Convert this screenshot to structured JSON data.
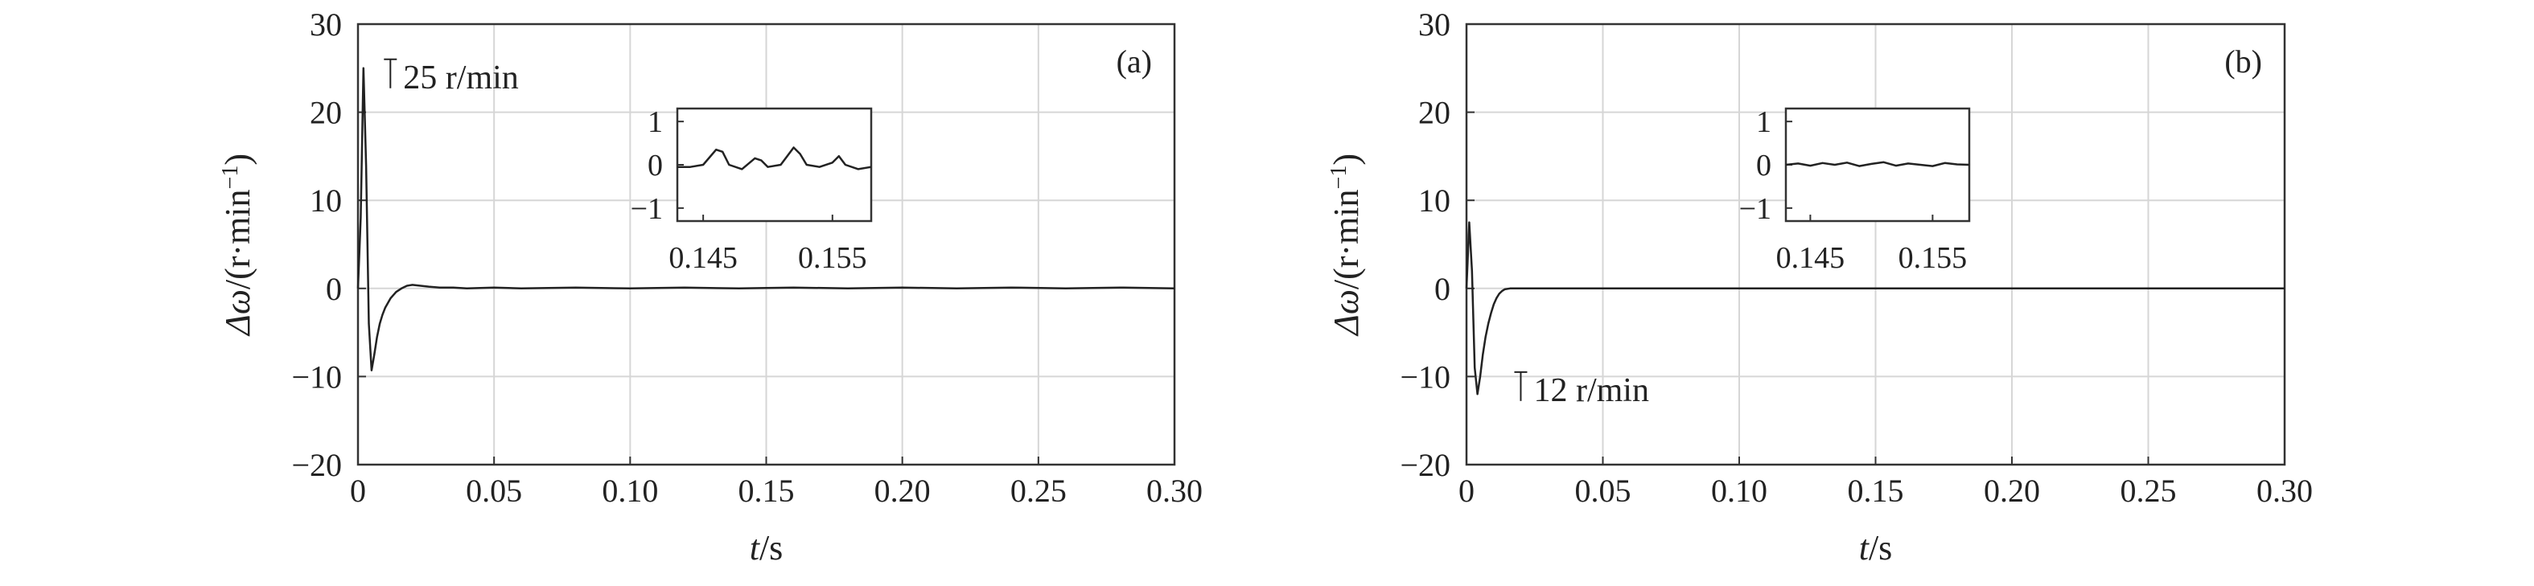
{
  "chart_data": [
    {
      "type": "line",
      "panel_label": "(a)",
      "xlabel_var": "t",
      "xlabel_unit": "/s",
      "ylabel_var": "Δω",
      "ylabel_unit": "/(r·min",
      "ylabel_exp": "−1",
      "ylabel_close": ")",
      "xlim": [
        0,
        0.3
      ],
      "ylim": [
        -20,
        30
      ],
      "xticks": [
        0,
        0.05,
        0.1,
        0.15,
        0.2,
        0.25,
        0.3
      ],
      "xtick_labels": [
        "0",
        "0.05",
        "0.10",
        "0.15",
        "0.20",
        "0.25",
        "0.30"
      ],
      "yticks": [
        -20,
        -10,
        0,
        10,
        20,
        30
      ],
      "ytick_labels": [
        "−20",
        "−10",
        "0",
        "10",
        "20",
        "30"
      ],
      "grid": true,
      "annotation": {
        "text": "25 r/min",
        "x": 0.006,
        "y": 24
      },
      "series": [
        {
          "x": [
            0,
            0.001,
            0.002,
            0.003,
            0.004,
            0.005,
            0.006,
            0.007,
            0.008,
            0.009,
            0.01,
            0.012,
            0.014,
            0.016,
            0.018,
            0.02,
            0.023,
            0.026,
            0.03,
            0.035,
            0.04,
            0.05,
            0.06,
            0.08,
            0.1,
            0.12,
            0.14,
            0.16,
            0.18,
            0.2,
            0.22,
            0.24,
            0.26,
            0.28,
            0.3
          ],
          "y": [
            0,
            8,
            25,
            14,
            -4,
            -9.3,
            -7.5,
            -5.5,
            -4,
            -3,
            -2.2,
            -1.1,
            -0.4,
            0,
            0.3,
            0.4,
            0.3,
            0.2,
            0.1,
            0.1,
            0,
            0.1,
            0,
            0.1,
            0,
            0.1,
            0,
            0.1,
            0,
            0.1,
            0,
            0.1,
            0,
            0.1,
            0
          ]
        }
      ],
      "inset": {
        "xlim": [
          0.143,
          0.158
        ],
        "ylim": [
          -1.3,
          1.3
        ],
        "xticks": [
          0.145,
          0.155
        ],
        "xtick_labels": [
          "0.145",
          "0.155"
        ],
        "yticks": [
          -1,
          0,
          1
        ],
        "ytick_labels": [
          "−1",
          "0",
          "1"
        ],
        "x": [
          0.143,
          0.144,
          0.145,
          0.146,
          0.1465,
          0.147,
          0.148,
          0.149,
          0.1495,
          0.15,
          0.151,
          0.1515,
          0.152,
          0.1525,
          0.153,
          0.154,
          0.155,
          0.1555,
          0.156,
          0.157,
          0.158
        ],
        "y": [
          -0.05,
          -0.05,
          0,
          0.35,
          0.3,
          0,
          -0.1,
          0.15,
          0.1,
          -0.05,
          0,
          0.2,
          0.4,
          0.25,
          0,
          -0.05,
          0.05,
          0.2,
          0,
          -0.1,
          -0.05
        ]
      }
    },
    {
      "type": "line",
      "panel_label": "(b)",
      "xlabel_var": "t",
      "xlabel_unit": "/s",
      "ylabel_var": "Δω",
      "ylabel_unit": "/(r·min",
      "ylabel_exp": "−1",
      "ylabel_close": ")",
      "xlim": [
        0,
        0.3
      ],
      "ylim": [
        -20,
        30
      ],
      "xticks": [
        0,
        0.05,
        0.1,
        0.15,
        0.2,
        0.25,
        0.3
      ],
      "xtick_labels": [
        "0",
        "0.05",
        "0.10",
        "0.15",
        "0.20",
        "0.25",
        "0.30"
      ],
      "yticks": [
        -20,
        -10,
        0,
        10,
        20,
        30
      ],
      "ytick_labels": [
        "−20",
        "−10",
        "0",
        "10",
        "20",
        "30"
      ],
      "grid": true,
      "annotation": {
        "text": "12 r/min",
        "x": 0.014,
        "y": -11.5
      },
      "series": [
        {
          "x": [
            0,
            0.001,
            0.002,
            0.003,
            0.004,
            0.005,
            0.006,
            0.007,
            0.008,
            0.009,
            0.01,
            0.011,
            0.012,
            0.013,
            0.014,
            0.016,
            0.02,
            0.03,
            0.05,
            0.1,
            0.15,
            0.2,
            0.25,
            0.3
          ],
          "y": [
            0,
            7.5,
            2,
            -9,
            -12,
            -10,
            -7.5,
            -5.5,
            -4,
            -2.8,
            -1.8,
            -1.1,
            -0.6,
            -0.3,
            -0.1,
            0,
            0,
            0,
            0,
            0,
            0,
            0,
            0,
            0
          ]
        }
      ],
      "inset": {
        "xlim": [
          0.143,
          0.158
        ],
        "ylim": [
          -1.3,
          1.3
        ],
        "xticks": [
          0.145,
          0.155
        ],
        "xtick_labels": [
          "0.145",
          "0.155"
        ],
        "yticks": [
          -1,
          0,
          1
        ],
        "ytick_labels": [
          "−1",
          "0",
          "1"
        ],
        "x": [
          0.143,
          0.144,
          0.145,
          0.146,
          0.147,
          0.148,
          0.149,
          0.15,
          0.151,
          0.152,
          0.153,
          0.154,
          0.155,
          0.156,
          0.157,
          0.158
        ],
        "y": [
          0,
          0.03,
          -0.02,
          0.04,
          0,
          0.05,
          -0.03,
          0.02,
          0.06,
          -0.02,
          0.03,
          0,
          -0.03,
          0.04,
          0.01,
          0
        ]
      }
    }
  ]
}
